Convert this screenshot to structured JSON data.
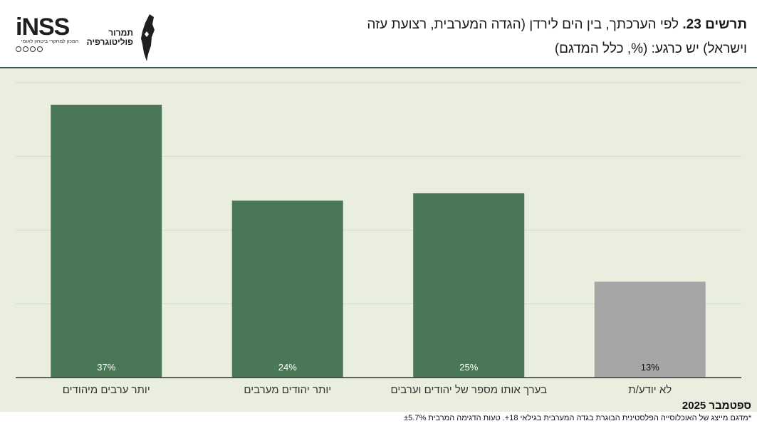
{
  "header": {
    "figure_label": "תרשים 23.",
    "question_line1": "לפי הערכתך, בין הים לירדן (הגדה המערבית, רצועת עזה",
    "question_line2": "וישראל) יש כרגע: (%, כלל המדגם)"
  },
  "logos": {
    "inss_word": "iNSS",
    "inss_subtitle": "המכון למחקרי ביטחון לאומי",
    "map_logo_text_line1": "תמרור",
    "map_logo_text_line2": "פוליטוגרפיה"
  },
  "chart_data": {
    "type": "bar",
    "direction": "rtl",
    "categories": [
      "יותר ערבים מיהודים",
      "יותר יהודים מערבים",
      "בערך אותו מספר של יהודים וערבים",
      "לא יודע/ת"
    ],
    "values": [
      37,
      24,
      25,
      13
    ],
    "data_labels": [
      "37%",
      "24%",
      "25%",
      "13%"
    ],
    "ylim": [
      0,
      40
    ],
    "grid": true,
    "colors": [
      "#4a7856",
      "#4a7856",
      "#4a7856",
      "#a6a6a6"
    ],
    "label_colors": [
      "#ffffff",
      "#ffffff",
      "#ffffff",
      "#111111"
    ]
  },
  "footer": {
    "date": "ספטמבר 2025",
    "note": "*מדגם מייצג של האוכלוסייה הפלסטינית הבוגרת בגדה המערבית בגילאי 18+. טעות הדגימה המרבית ±5.7%"
  }
}
